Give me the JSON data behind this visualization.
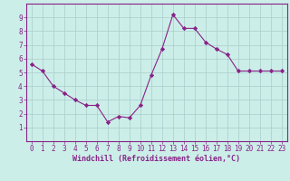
{
  "x": [
    0,
    1,
    2,
    3,
    4,
    5,
    6,
    7,
    8,
    9,
    10,
    11,
    12,
    13,
    14,
    15,
    16,
    17,
    18,
    19,
    20,
    21,
    22,
    23
  ],
  "y": [
    5.6,
    5.1,
    4.0,
    3.5,
    3.0,
    2.6,
    2.6,
    1.4,
    1.8,
    1.7,
    2.6,
    4.8,
    6.7,
    9.2,
    8.2,
    8.2,
    7.2,
    6.7,
    6.3,
    5.1,
    5.1,
    5.1,
    5.1,
    5.1
  ],
  "line_color": "#882288",
  "marker": "D",
  "marker_size": 2.2,
  "bg_color": "#cceee8",
  "grid_color": "#aacccc",
  "xlabel": "Windchill (Refroidissement éolien,°C)",
  "xlabel_color": "#882288",
  "tick_color": "#882288",
  "spine_color": "#882288",
  "ylim": [
    0,
    10
  ],
  "xlim": [
    -0.5,
    23.5
  ],
  "yticks": [
    1,
    2,
    3,
    4,
    5,
    6,
    7,
    8,
    9
  ],
  "xticks": [
    0,
    1,
    2,
    3,
    4,
    5,
    6,
    7,
    8,
    9,
    10,
    11,
    12,
    13,
    14,
    15,
    16,
    17,
    18,
    19,
    20,
    21,
    22,
    23
  ],
  "tick_fontsize": 5.5,
  "xlabel_fontsize": 6.0
}
